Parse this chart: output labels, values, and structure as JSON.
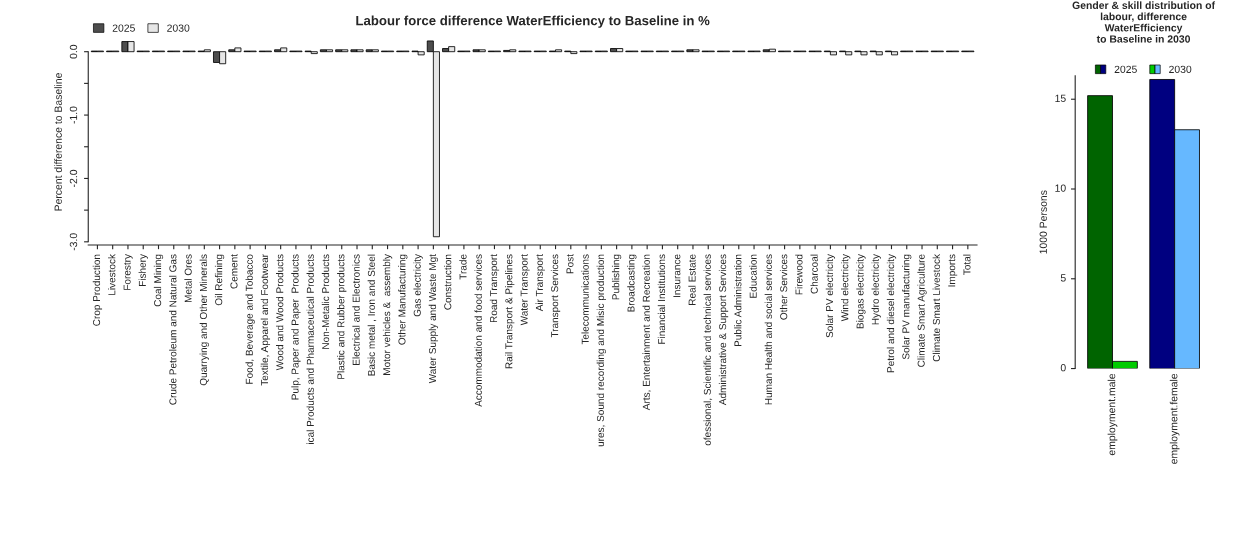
{
  "chart_data": [
    {
      "type": "bar",
      "title": "Labour force difference WaterEfficiency to Baseline in %",
      "ylabel": "Percent difference to Baseline",
      "categories": [
        "Crop Production",
        "Livestock",
        "Forestry",
        "Fishery",
        "Coal Mining",
        "Crude Petroleum and Natural Gas",
        "Metal Ores",
        "Quarrying and Other Minerals",
        "Oil Refining",
        "Cement",
        "Food, Beverage and Tobacco",
        "Textile, Apparel and Footwear",
        "Wood and Wood Products",
        "Pulp, Paper and Paper  Products",
        "ical Products and Pharmaceutical Products",
        "Non-Metalic Products",
        "Plastic and Rubber products",
        "Electrical and Electronics",
        "Basic metal , Iron and Steel",
        "Motor vehicles &  assembly",
        "Other Manufacturing",
        "Gas electricity",
        "Water Supply and Waste Mgt",
        "Construction",
        "Trade",
        "Accommodation and food services",
        "Road Transport",
        "Rail Transport & Pipelines",
        "Water Transport",
        "Air Transport",
        "Transport Services",
        "Post",
        "Telecommunications",
        "ures, Sound recording and Misic production",
        "Publishing",
        "Broadcasting",
        "Arts, Entertainment and Recreation",
        "Financial Institutions",
        "Insurance",
        "Real Estate",
        "ofessional, Scientific and technical services",
        "Administrative & Support Services",
        "Public Administration",
        "Education",
        "Human Health and social services",
        "Other Services",
        "Firewood",
        "Charcoal",
        "Solar PV electricity",
        "Wind electricity",
        "Biogas electricity",
        "Hydro electricity",
        "Petrol and diesel electricity",
        "Solar PV manufacturing",
        "Climate Smart Agriculture",
        "Climate Smart Livestock",
        "Imports",
        "Total"
      ],
      "series": [
        {
          "name": "2025",
          "color": "#4d4d4d",
          "values": [
            0.01,
            0.01,
            0.16,
            0.01,
            0.01,
            0.01,
            0.01,
            0.01,
            -0.17,
            0.03,
            0.01,
            0.01,
            0.03,
            0.01,
            0.01,
            0.03,
            0.03,
            0.03,
            0.03,
            0.01,
            0.01,
            0.01,
            0.17,
            0.05,
            0.01,
            0.03,
            0.01,
            0.02,
            0.01,
            0.01,
            0.01,
            0.01,
            0.01,
            0.01,
            0.05,
            0.01,
            0.01,
            0.01,
            0.01,
            0.03,
            0.01,
            0.01,
            0.01,
            0.01,
            0.03,
            0.01,
            0.01,
            0.01,
            0.01,
            0.01,
            0.01,
            0.01,
            0.01,
            0.01,
            0.01,
            0.01,
            0.01,
            0.01
          ]
        },
        {
          "name": "2030",
          "color": "#e6e6e6",
          "values": [
            0.01,
            0.01,
            0.16,
            0.01,
            0.01,
            0.01,
            0.01,
            0.03,
            -0.19,
            0.06,
            0.01,
            0.01,
            0.06,
            0.01,
            -0.03,
            0.03,
            0.03,
            0.03,
            0.03,
            0.01,
            0.01,
            -0.05,
            -2.92,
            0.08,
            0.01,
            0.03,
            0.01,
            0.03,
            0.01,
            0.01,
            0.03,
            -0.03,
            0.01,
            0.01,
            0.05,
            0.01,
            0.01,
            0.01,
            0.01,
            0.03,
            0.01,
            0.01,
            0.01,
            0.01,
            0.04,
            0.01,
            0.01,
            0.01,
            -0.05,
            -0.05,
            -0.05,
            -0.05,
            -0.05,
            0.01,
            0.01,
            0.01,
            0.01,
            0.01
          ]
        }
      ],
      "ylim": [
        -3.05,
        0.2
      ],
      "yticks": [
        {
          "value": 0,
          "label": "0.0"
        },
        {
          "value": -0.5,
          "label": null
        },
        {
          "value": -1,
          "label": "-1.0"
        },
        {
          "value": -1.5,
          "label": null
        },
        {
          "value": -2,
          "label": "-2.0"
        },
        {
          "value": -2.5,
          "label": null
        },
        {
          "value": -3,
          "label": "-3.0"
        }
      ],
      "legend": "top left",
      "grid": false
    },
    {
      "type": "bar",
      "title": "Gender & skill distribution of\nlabour, difference\nWaterEfficiency\nto Baseline in 2030",
      "ylabel": "1000 Persons",
      "categories": [
        "employment.male",
        "employment.female"
      ],
      "series": [
        {
          "name": "2025",
          "colors": [
            "#006400",
            "#000080"
          ],
          "values": [
            15.2,
            16.1
          ]
        },
        {
          "name": "2030",
          "colors": [
            "#00cc00",
            "#66b8ff"
          ],
          "values": [
            0.4,
            13.3
          ]
        }
      ],
      "ylim": [
        0,
        16.3
      ],
      "yticks": [
        0,
        5,
        10,
        15
      ],
      "legend": "top",
      "grid": false
    }
  ]
}
